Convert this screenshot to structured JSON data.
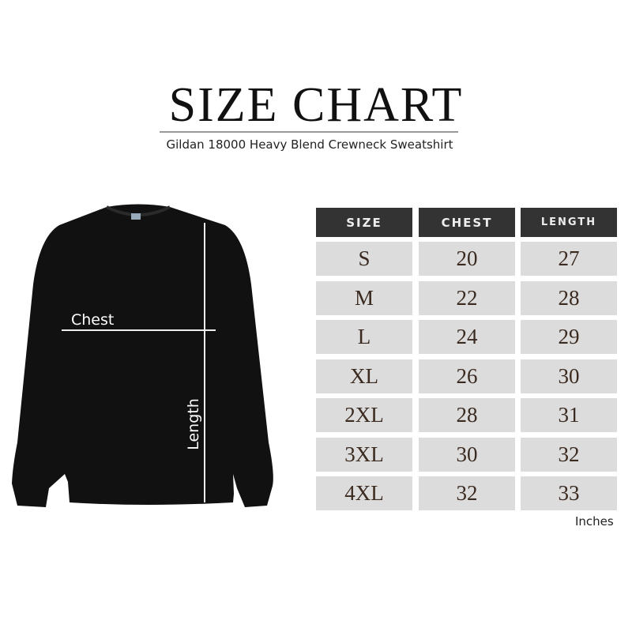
{
  "title": "SIZE CHART",
  "subtitle": "Gildan 18000 Heavy Blend Crewneck Sweatshirt",
  "diagram": {
    "chest_label": "Chest",
    "length_label": "Length"
  },
  "table": {
    "headers": [
      "SIZE",
      "CHEST",
      "LENGTH"
    ],
    "rows": [
      [
        "S",
        "20",
        "27"
      ],
      [
        "M",
        "22",
        "28"
      ],
      [
        "L",
        "24",
        "29"
      ],
      [
        "XL",
        "26",
        "30"
      ],
      [
        "2XL",
        "28",
        "31"
      ],
      [
        "3XL",
        "30",
        "32"
      ],
      [
        "4XL",
        "32",
        "33"
      ]
    ],
    "units": "Inches"
  },
  "colors": {
    "header_bg": "#333333",
    "cell_bg": "#dcdcdc",
    "shirt": "#111111"
  }
}
